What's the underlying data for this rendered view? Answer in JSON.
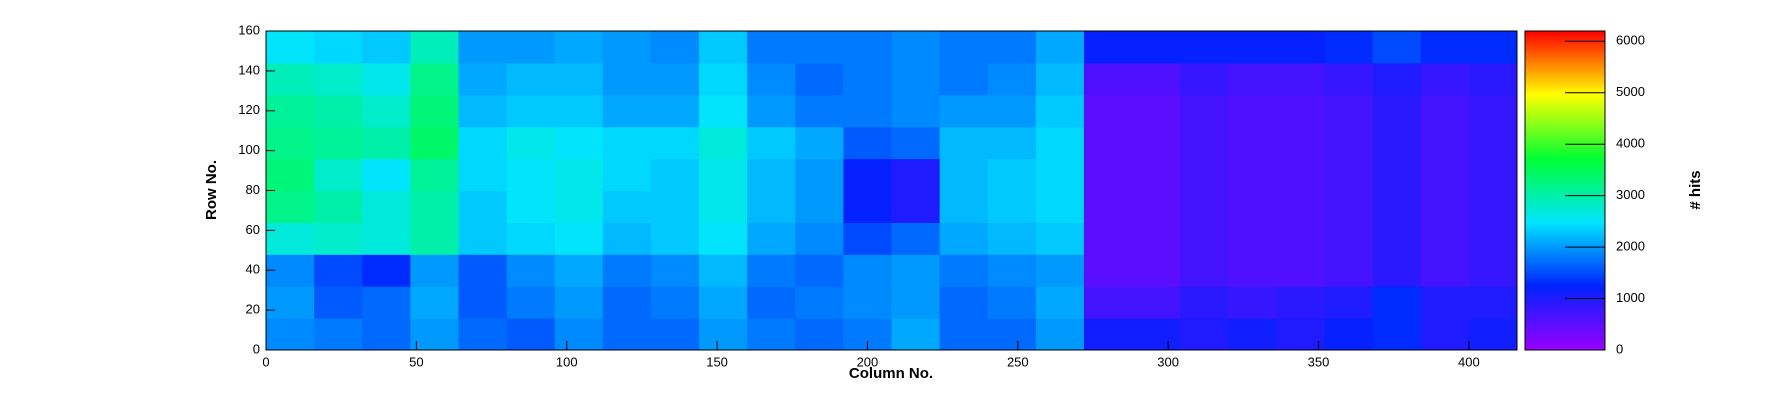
{
  "chart_data": {
    "type": "heatmap",
    "x_label": "Column No.",
    "y_label": "Row No.",
    "z_label": "# hits",
    "xbins": [
      0,
      16,
      32,
      48,
      64,
      80,
      96,
      112,
      128,
      144,
      160,
      176,
      192,
      208,
      224,
      240,
      256,
      272,
      288,
      304,
      320,
      336,
      352,
      368,
      384,
      400,
      416
    ],
    "ybins": [
      0,
      16,
      32,
      48,
      64,
      80,
      96,
      112,
      128,
      144,
      160
    ],
    "xlim": [
      0,
      416
    ],
    "ylim": [
      0,
      160
    ],
    "zlim": [
      0,
      6200
    ],
    "xticks": [
      0,
      50,
      100,
      150,
      200,
      250,
      300,
      350,
      400
    ],
    "yticks": [
      0,
      20,
      40,
      60,
      80,
      100,
      120,
      140,
      160
    ],
    "zticks": [
      0,
      1000,
      2000,
      3000,
      4000,
      5000,
      6000
    ],
    "colormap": [
      "#9900ff",
      "#0022ff",
      "#00e5ff",
      "#00ff33",
      "#ffff00",
      "#ff0000"
    ],
    "z": [
      [
        1900,
        1800,
        1700,
        2000,
        1700,
        1600,
        1900,
        1700,
        1700,
        2000,
        1800,
        1700,
        1800,
        2100,
        1700,
        1700,
        2000,
        1100,
        1100,
        1000,
        1100,
        1000,
        1200,
        1300,
        1000,
        1100
      ],
      [
        2000,
        1600,
        1700,
        2100,
        1600,
        1800,
        2000,
        1700,
        1800,
        2100,
        1700,
        1800,
        1900,
        2000,
        1700,
        1800,
        2100,
        700,
        700,
        900,
        800,
        900,
        1000,
        1300,
        1000,
        1000
      ],
      [
        1900,
        1500,
        1300,
        2000,
        1600,
        1900,
        2100,
        1800,
        1900,
        2200,
        1800,
        1700,
        1900,
        2000,
        1800,
        1900,
        2000,
        500,
        500,
        700,
        600,
        600,
        700,
        900,
        700,
        800
      ],
      [
        2700,
        2800,
        2700,
        3000,
        2300,
        2400,
        2500,
        2200,
        2300,
        2500,
        2100,
        1900,
        1500,
        1700,
        2100,
        2200,
        2300,
        500,
        500,
        700,
        600,
        600,
        700,
        900,
        700,
        800
      ],
      [
        3200,
        3000,
        2700,
        3000,
        2300,
        2500,
        2600,
        2300,
        2300,
        2600,
        2200,
        2000,
        1200,
        1000,
        2200,
        2300,
        2400,
        500,
        500,
        700,
        600,
        600,
        700,
        900,
        700,
        800
      ],
      [
        3300,
        2800,
        2500,
        3100,
        2400,
        2500,
        2600,
        2400,
        2300,
        2600,
        2200,
        2000,
        1200,
        1000,
        2200,
        2300,
        2400,
        500,
        500,
        700,
        600,
        600,
        700,
        900,
        700,
        800
      ],
      [
        3200,
        3100,
        3000,
        3400,
        2400,
        2600,
        2500,
        2400,
        2400,
        2700,
        2300,
        2100,
        1600,
        1700,
        2200,
        2200,
        2400,
        500,
        500,
        700,
        600,
        600,
        700,
        900,
        700,
        800
      ],
      [
        3100,
        3000,
        2800,
        3300,
        2200,
        2300,
        2300,
        2100,
        2100,
        2500,
        2000,
        1800,
        1800,
        1900,
        2000,
        2000,
        2300,
        500,
        500,
        700,
        600,
        600,
        700,
        900,
        700,
        800
      ],
      [
        2900,
        2800,
        2600,
        3200,
        2100,
        2200,
        2200,
        2000,
        2000,
        2400,
        1900,
        1700,
        1800,
        1900,
        1800,
        1900,
        2200,
        600,
        600,
        800,
        700,
        700,
        800,
        1000,
        800,
        900
      ],
      [
        2500,
        2400,
        2300,
        2900,
        2000,
        2000,
        2100,
        2000,
        1900,
        2300,
        1800,
        1800,
        1800,
        1900,
        1800,
        1800,
        2100,
        1200,
        1200,
        1200,
        1200,
        1200,
        1300,
        1500,
        1300,
        1300
      ]
    ]
  }
}
